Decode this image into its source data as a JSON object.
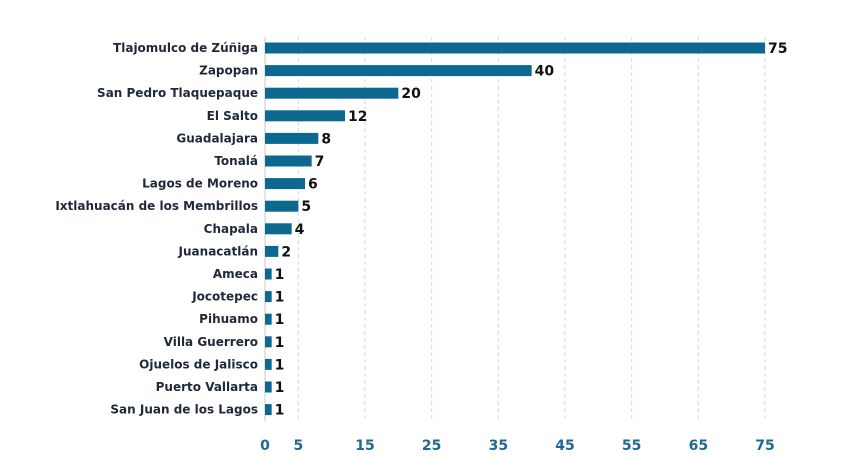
{
  "chart_data": {
    "type": "bar",
    "orientation": "horizontal",
    "categories": [
      "Tlajomulco de Zúñiga",
      "Zapopan",
      "San Pedro Tlaquepaque",
      "El Salto",
      "Guadalajara",
      "Tonalá",
      "Lagos de Moreno",
      "Ixtlahuacán de los Membrillos",
      "Chapala",
      "Juanacatlán",
      "Ameca",
      "Jocotepec",
      "Pihuamo",
      "Villa Guerrero",
      "Ojuelos de Jalisco",
      "Puerto Vallarta",
      "San Juan de los Lagos"
    ],
    "values": [
      75,
      40,
      20,
      12,
      8,
      7,
      6,
      5,
      4,
      2,
      1,
      1,
      1,
      1,
      1,
      1,
      1
    ],
    "xlim": [
      0,
      75
    ],
    "xticks": [
      "0",
      "5",
      "15",
      "25",
      "35",
      "45",
      "55",
      "65",
      "75"
    ],
    "grid": true,
    "bar_color": "#0d6890",
    "tick_color": "#1c6a93"
  }
}
